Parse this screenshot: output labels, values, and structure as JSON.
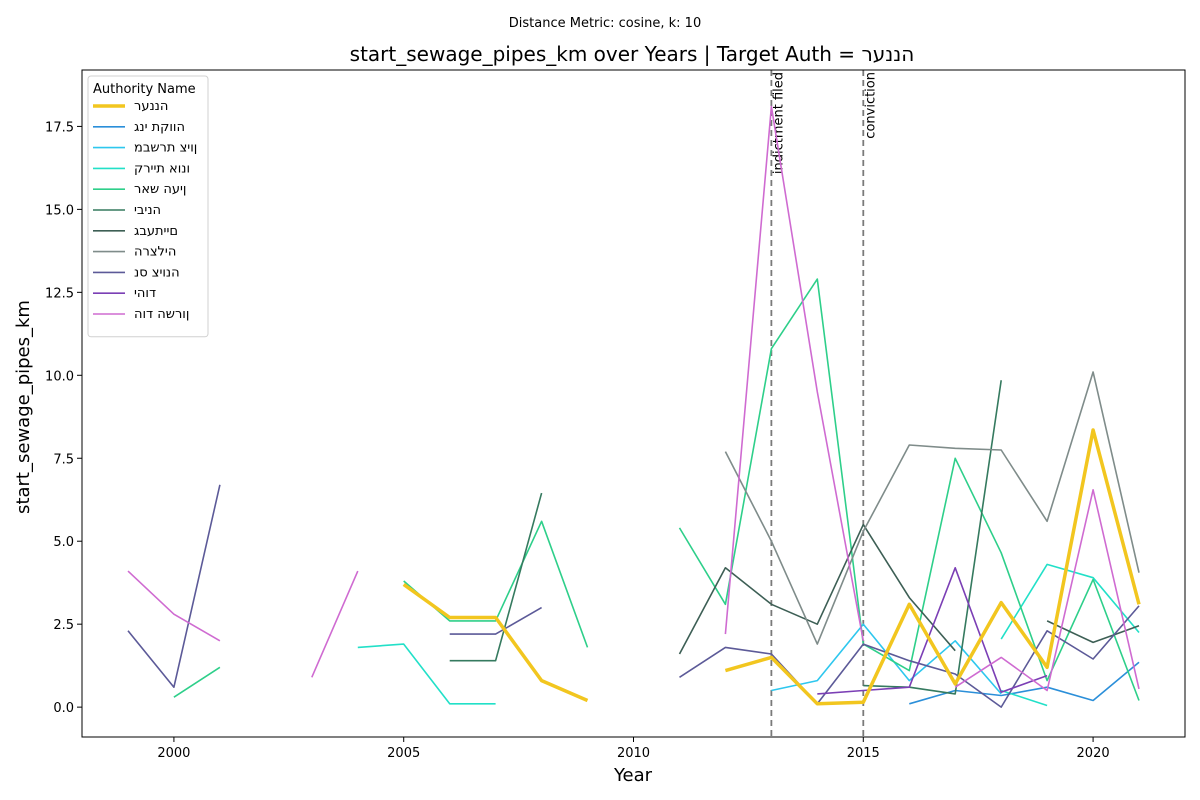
{
  "chart_data": {
    "type": "line",
    "subtitle": "Distance Metric: cosine, k: 10",
    "title": "start_sewage_pipes_km over Years | Target Auth = הננער",
    "xlabel": "Year",
    "ylabel": "start_sewage_pipes_km",
    "xlim": [
      1998,
      2022
    ],
    "ylim": [
      -0.9,
      19.2
    ],
    "x_ticks": [
      2000,
      2005,
      2010,
      2015,
      2020
    ],
    "y_ticks": [
      0.0,
      2.5,
      5.0,
      7.5,
      10.0,
      12.5,
      15.0,
      17.5
    ],
    "y_tick_labels": [
      "0.0",
      "2.5",
      "5.0",
      "7.5",
      "10.0",
      "12.5",
      "15.0",
      "17.5"
    ],
    "grid": false,
    "legend_title": "Authority Name",
    "legend_position": "top-left",
    "events": [
      {
        "x": 2013,
        "label": "indictment filed"
      },
      {
        "x": 2015,
        "label": "conviction"
      }
    ],
    "series": [
      {
        "name": "הננער",
        "color": "#f2c61f",
        "width": 3.5,
        "points": [
          [
            2005,
            3.7
          ],
          [
            2006,
            2.7
          ],
          [
            2007,
            2.7
          ],
          [
            2008,
            0.8
          ],
          [
            2009,
            0.2
          ],
          [
            null,
            null
          ],
          [
            2012,
            1.1
          ],
          [
            2013,
            1.5
          ],
          [
            2014,
            0.1
          ],
          [
            2015,
            0.15
          ],
          [
            2016,
            3.1
          ],
          [
            2017,
            0.7
          ],
          [
            2018,
            3.15
          ],
          [
            2019,
            1.2
          ],
          [
            2020,
            8.35
          ],
          [
            2021,
            3.1
          ]
        ]
      },
      {
        "name": "הווקת ינג",
        "color": "#2b8fd9",
        "width": 1.6,
        "points": [
          [
            2016,
            0.1
          ],
          [
            2017,
            0.5
          ],
          [
            2018,
            0.35
          ],
          [
            2019,
            0.6
          ],
          [
            2020,
            0.2
          ],
          [
            2021,
            1.35
          ]
        ]
      },
      {
        "name": "ןויצ תרשבמ",
        "color": "#2ec7ee",
        "width": 1.6,
        "points": [
          [
            2013,
            0.5
          ],
          [
            2014,
            0.8
          ],
          [
            2015,
            2.5
          ],
          [
            2016,
            0.8
          ],
          [
            2017,
            2.0
          ],
          [
            2018,
            0.4
          ]
        ]
      },
      {
        "name": "ונוא תיירק",
        "color": "#22e0c8",
        "width": 1.6,
        "points": [
          [
            2004,
            1.8
          ],
          [
            2005,
            1.9
          ],
          [
            2006,
            0.1
          ],
          [
            2007,
            0.1
          ],
          [
            null,
            null
          ],
          [
            2018,
            2.05
          ],
          [
            2019,
            4.3
          ],
          [
            2020,
            3.9
          ],
          [
            2021,
            2.25
          ],
          [
            null,
            null
          ],
          [
            2018,
            0.5
          ],
          [
            2019,
            0.05
          ]
        ]
      },
      {
        "name": "ןיעה שאר",
        "color": "#2ecf8a",
        "width": 1.6,
        "points": [
          [
            2000,
            0.3
          ],
          [
            2001,
            1.2
          ],
          [
            null,
            null
          ],
          [
            2005,
            3.8
          ],
          [
            2006,
            2.6
          ],
          [
            2007,
            2.6
          ],
          [
            2008,
            5.6
          ],
          [
            2009,
            1.8
          ],
          [
            null,
            null
          ],
          [
            2011,
            5.4
          ],
          [
            2012,
            3.1
          ],
          [
            2013,
            10.8
          ],
          [
            2014,
            12.9
          ],
          [
            2015,
            1.9
          ],
          [
            2016,
            1.1
          ],
          [
            2017,
            7.5
          ],
          [
            2018,
            4.65
          ],
          [
            2019,
            0.8
          ],
          [
            2020,
            3.85
          ],
          [
            2021,
            0.2
          ]
        ]
      },
      {
        "name": "הניבי",
        "color": "#357a5f",
        "width": 1.6,
        "points": [
          [
            2006,
            1.4
          ],
          [
            2007,
            1.4
          ],
          [
            2008,
            6.45
          ],
          [
            null,
            null
          ],
          [
            2015,
            0.65
          ],
          [
            2016,
            0.6
          ],
          [
            2017,
            0.4
          ],
          [
            2018,
            9.85
          ]
        ]
      },
      {
        "name": "םייתעבג",
        "color": "#3d5f55",
        "width": 1.6,
        "points": [
          [
            2011,
            1.6
          ],
          [
            2012,
            4.2
          ],
          [
            2013,
            3.1
          ],
          [
            2014,
            2.5
          ],
          [
            2015,
            5.5
          ],
          [
            2016,
            3.3
          ],
          [
            2017,
            1.7
          ],
          [
            null,
            null
          ],
          [
            2019,
            2.6
          ],
          [
            2020,
            1.95
          ],
          [
            2021,
            2.45
          ]
        ]
      },
      {
        "name": "הילצרה",
        "color": "#7f8c8a",
        "width": 1.6,
        "points": [
          [
            2012,
            7.7
          ],
          [
            2013,
            5.0
          ],
          [
            2014,
            1.9
          ],
          [
            2015,
            5.3
          ],
          [
            2016,
            7.9
          ],
          [
            2017,
            7.8
          ],
          [
            2018,
            7.75
          ],
          [
            2019,
            5.6
          ],
          [
            2020,
            10.1
          ],
          [
            2021,
            4.05
          ]
        ]
      },
      {
        "name": "הנויצ סנ",
        "color": "#5c5a98",
        "width": 1.6,
        "points": [
          [
            1999,
            2.3
          ],
          [
            2000,
            0.6
          ],
          [
            2001,
            6.7
          ],
          [
            null,
            null
          ],
          [
            2006,
            2.2
          ],
          [
            2007,
            2.2
          ],
          [
            2008,
            3.0
          ],
          [
            null,
            null
          ],
          [
            2011,
            0.9
          ],
          [
            2012,
            1.8
          ],
          [
            2013,
            1.6
          ],
          [
            2014,
            0.1
          ],
          [
            2015,
            1.9
          ],
          [
            2016,
            1.4
          ],
          [
            2017,
            1.0
          ],
          [
            2018,
            0.0
          ],
          [
            2019,
            2.3
          ],
          [
            2020,
            1.45
          ],
          [
            2021,
            3.05
          ]
        ]
      },
      {
        "name": "דוהי",
        "color": "#7b3fb5",
        "width": 1.6,
        "points": [
          [
            2014,
            0.4
          ],
          [
            2015,
            0.5
          ],
          [
            2016,
            0.6
          ],
          [
            2017,
            4.2
          ],
          [
            2018,
            0.45
          ],
          [
            2019,
            0.95
          ]
        ]
      },
      {
        "name": "ןורשה דוה",
        "color": "#cf6bd1",
        "width": 1.6,
        "points": [
          [
            1999,
            4.1
          ],
          [
            2000,
            2.8
          ],
          [
            2001,
            2.0
          ],
          [
            null,
            null
          ],
          [
            2003,
            0.9
          ],
          [
            2004,
            4.1
          ],
          [
            null,
            null
          ],
          [
            2012,
            2.2
          ],
          [
            2013,
            18.1
          ],
          [
            2014,
            9.5
          ],
          [
            2015,
            2.0
          ],
          [
            null,
            null
          ],
          [
            2017,
            0.6
          ],
          [
            2018,
            1.5
          ],
          [
            2019,
            0.5
          ],
          [
            2020,
            6.55
          ],
          [
            2021,
            0.55
          ]
        ]
      }
    ]
  }
}
